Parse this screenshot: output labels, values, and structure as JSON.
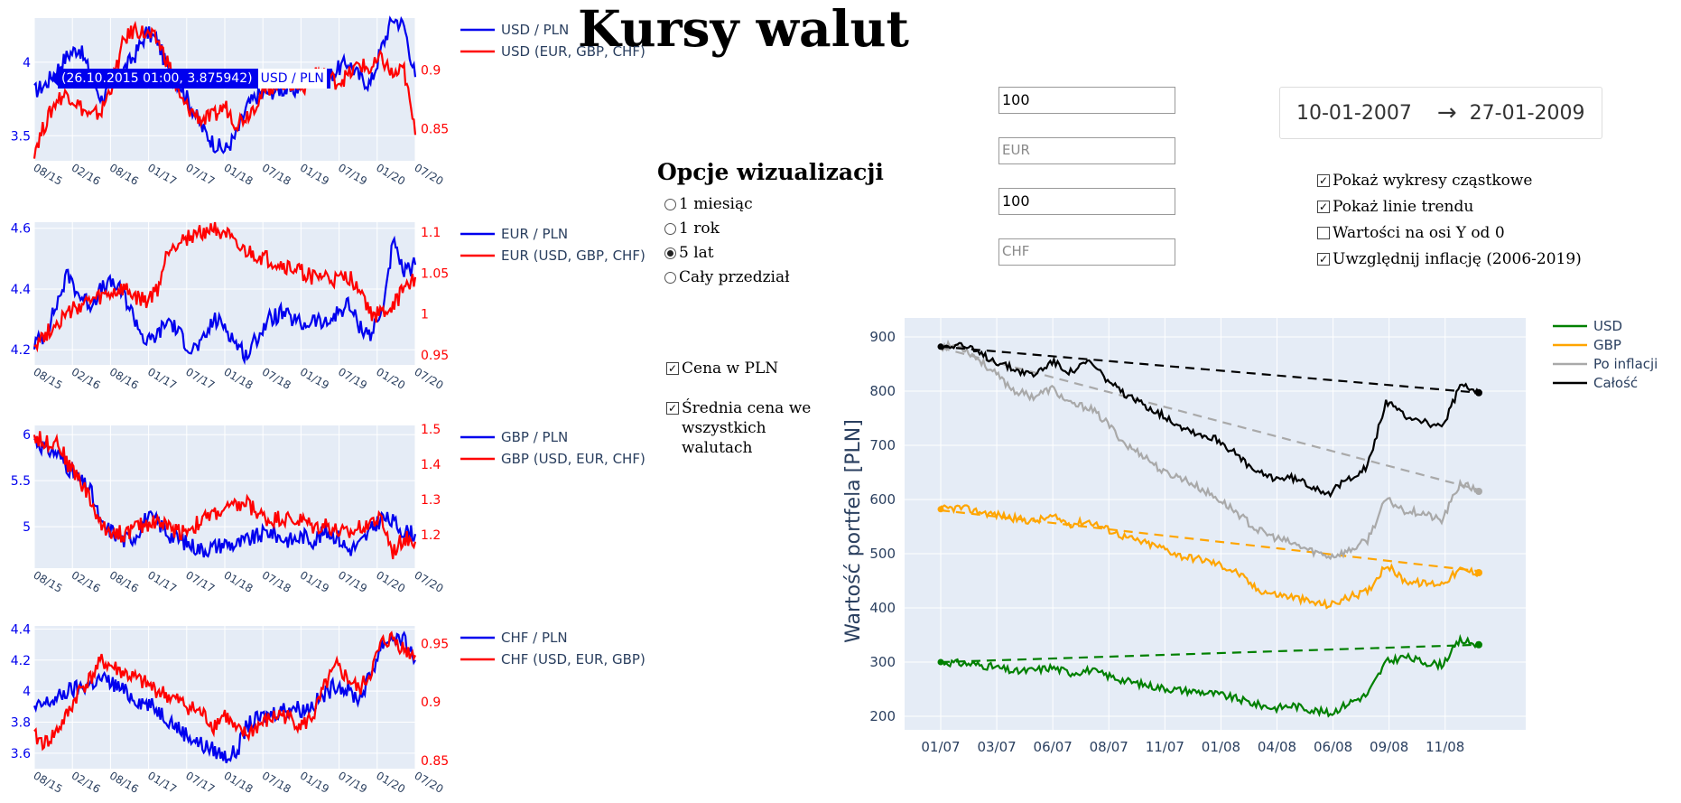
{
  "title": "Kursy walut",
  "options": {
    "title": "Opcje wizualizacji",
    "ranges": [
      {
        "label": "1 miesiąc",
        "selected": false
      },
      {
        "label": "1 rok",
        "selected": false
      },
      {
        "label": "5 lat",
        "selected": true
      },
      {
        "label": "Cały przedział",
        "selected": false
      }
    ],
    "price_pln": {
      "label": "Cena w PLN",
      "checked": true
    },
    "avg_price": {
      "label": "Średnia cena we wszystkich walutach",
      "checked": true
    }
  },
  "inputs": [
    {
      "value": "100",
      "placeholder": ""
    },
    {
      "value": "",
      "placeholder": "EUR"
    },
    {
      "value": "100",
      "placeholder": ""
    },
    {
      "value": "",
      "placeholder": "CHF"
    }
  ],
  "date_range": {
    "start": "10-01-2007",
    "arrow": "→",
    "end": "27-01-2009"
  },
  "settings": [
    {
      "label": "Pokaż wykresy cząstkowe",
      "checked": true
    },
    {
      "label": "Pokaż linie trendu",
      "checked": true
    },
    {
      "label": "Wartości na osi Y od 0",
      "checked": false
    },
    {
      "label": "Uwzględnij inflację (2006-2019)",
      "checked": true
    }
  ],
  "colors": {
    "blue": "#0000ee",
    "red": "#ff0000",
    "grid_bg": "#e5ecf6",
    "green": "#008000",
    "orange": "#ffa500",
    "gray": "#a9a9a9",
    "black": "#000000",
    "axis_text": "#2a3f5f"
  },
  "hover_tooltip": {
    "text": "(26.10.2015 01:00, 3.875942)",
    "trace": "USD / PLN"
  },
  "chart_data": [
    {
      "type": "line",
      "x_ticks": [
        "08/15",
        "02/16",
        "08/16",
        "01/17",
        "07/17",
        "01/18",
        "07/18",
        "01/19",
        "07/19",
        "01/20",
        "07/20"
      ],
      "y_ticks_left": [
        "3.5",
        "4"
      ],
      "y_ticks_right": [
        "0.85",
        "0.9"
      ],
      "ylim_left": [
        3.33,
        4.3
      ],
      "ylim_right": [
        0.823,
        0.944
      ],
      "series": [
        {
          "name": "USD / PLN",
          "axis": "left",
          "color": "#0000ee",
          "values": [
            3.8,
            3.85,
            3.95,
            4.05,
            4.1,
            3.92,
            3.75,
            3.85,
            3.95,
            4.05,
            4.2,
            4.15,
            3.92,
            3.85,
            3.7,
            3.55,
            3.45,
            3.4,
            3.5,
            3.7,
            3.78,
            3.8,
            3.82,
            3.8,
            3.85,
            3.9,
            3.88,
            3.95,
            4.0,
            3.9,
            3.85,
            4.1,
            4.3,
            4.25,
            3.9
          ]
        },
        {
          "name": "USD (EUR, GBP, CHF)",
          "axis": "right",
          "color": "#ff0000",
          "values": [
            0.832,
            0.855,
            0.875,
            0.88,
            0.87,
            0.86,
            0.865,
            0.89,
            0.925,
            0.935,
            0.93,
            0.925,
            0.905,
            0.875,
            0.865,
            0.858,
            0.86,
            0.87,
            0.855,
            0.862,
            0.875,
            0.885,
            0.89,
            0.888,
            0.885,
            0.9,
            0.895,
            0.89,
            0.895,
            0.905,
            0.9,
            0.91,
            0.895,
            0.9,
            0.845
          ]
        }
      ]
    },
    {
      "type": "line",
      "x_ticks": [
        "08/15",
        "02/16",
        "08/16",
        "01/17",
        "07/17",
        "01/18",
        "07/18",
        "01/19",
        "07/19",
        "01/20",
        "07/20"
      ],
      "y_ticks_left": [
        "4.2",
        "4.4",
        "4.6"
      ],
      "y_ticks_right": [
        "0.95",
        "1",
        "1.05",
        "1.1"
      ],
      "ylim_left": [
        4.15,
        4.62
      ],
      "ylim_right": [
        0.938,
        1.112
      ],
      "series": [
        {
          "name": "EUR / PLN",
          "axis": "left",
          "color": "#0000ee",
          "values": [
            4.22,
            4.25,
            4.35,
            4.45,
            4.38,
            4.35,
            4.4,
            4.42,
            4.38,
            4.3,
            4.22,
            4.25,
            4.3,
            4.25,
            4.2,
            4.22,
            4.3,
            4.28,
            4.22,
            4.18,
            4.25,
            4.3,
            4.32,
            4.3,
            4.28,
            4.3,
            4.28,
            4.32,
            4.35,
            4.28,
            4.25,
            4.32,
            4.55,
            4.45,
            4.48
          ]
        },
        {
          "name": "EUR (USD, GBP, CHF)",
          "axis": "right",
          "color": "#ff0000",
          "values": [
            0.965,
            0.975,
            0.99,
            1.0,
            1.01,
            1.015,
            1.02,
            1.025,
            1.03,
            1.02,
            1.015,
            1.03,
            1.08,
            1.09,
            1.095,
            1.1,
            1.105,
            1.1,
            1.08,
            1.075,
            1.07,
            1.065,
            1.06,
            1.055,
            1.05,
            1.045,
            1.045,
            1.04,
            1.045,
            1.035,
            1.0,
            1.0,
            1.01,
            1.03,
            1.045
          ]
        }
      ]
    },
    {
      "type": "line",
      "x_ticks": [
        "08/15",
        "02/16",
        "08/16",
        "01/17",
        "07/17",
        "01/18",
        "07/18",
        "01/19",
        "07/19",
        "01/20",
        "07/20"
      ],
      "y_ticks_left": [
        "5",
        "5.5",
        "6"
      ],
      "y_ticks_right": [
        "1.2",
        "1.3",
        "1.4",
        "1.5"
      ],
      "ylim_left": [
        4.55,
        6.1
      ],
      "ylim_right": [
        1.105,
        1.51
      ],
      "series": [
        {
          "name": "GBP / PLN",
          "axis": "left",
          "color": "#0000ee",
          "values": [
            5.95,
            5.85,
            5.8,
            5.65,
            5.5,
            5.4,
            5.0,
            4.95,
            4.85,
            4.9,
            5.1,
            5.05,
            4.92,
            4.85,
            4.8,
            4.75,
            4.78,
            4.82,
            4.8,
            4.85,
            4.9,
            4.95,
            4.88,
            4.85,
            4.9,
            4.85,
            4.95,
            4.9,
            4.75,
            4.8,
            4.95,
            5.1,
            5.05,
            4.95,
            4.92
          ]
        },
        {
          "name": "GBP (USD, EUR, CHF)",
          "axis": "right",
          "color": "#ff0000",
          "values": [
            1.48,
            1.46,
            1.47,
            1.4,
            1.36,
            1.3,
            1.22,
            1.21,
            1.2,
            1.22,
            1.23,
            1.24,
            1.22,
            1.21,
            1.22,
            1.24,
            1.26,
            1.27,
            1.28,
            1.29,
            1.26,
            1.24,
            1.25,
            1.24,
            1.24,
            1.22,
            1.23,
            1.21,
            1.2,
            1.22,
            1.24,
            1.24,
            1.15,
            1.19,
            1.18
          ]
        }
      ]
    },
    {
      "type": "line",
      "x_ticks": [
        "08/15",
        "02/16",
        "08/16",
        "01/17",
        "07/17",
        "01/18",
        "07/18",
        "01/19",
        "07/19",
        "01/20",
        "07/20"
      ],
      "y_ticks_left": [
        "3.6",
        "3.8",
        "4",
        "4.2",
        "4.4"
      ],
      "y_ticks_right": [
        "0.85",
        "0.9",
        "0.95"
      ],
      "ylim_left": [
        3.5,
        4.42
      ],
      "ylim_right": [
        0.843,
        0.965
      ],
      "series": [
        {
          "name": "CHF / PLN",
          "axis": "left",
          "color": "#0000ee",
          "values": [
            3.88,
            3.92,
            3.95,
            4.0,
            4.02,
            4.05,
            4.08,
            4.05,
            4.0,
            3.95,
            3.92,
            3.88,
            3.82,
            3.75,
            3.7,
            3.65,
            3.62,
            3.58,
            3.6,
            3.78,
            3.82,
            3.85,
            3.88,
            3.9,
            3.88,
            3.92,
            3.98,
            4.05,
            4.0,
            3.95,
            4.1,
            4.3,
            4.35,
            4.32,
            4.2
          ]
        },
        {
          "name": "CHF (USD, EUR, GBP)",
          "axis": "right",
          "color": "#ff0000",
          "values": [
            0.87,
            0.865,
            0.875,
            0.89,
            0.91,
            0.92,
            0.935,
            0.93,
            0.925,
            0.92,
            0.915,
            0.91,
            0.905,
            0.9,
            0.895,
            0.89,
            0.88,
            0.89,
            0.875,
            0.872,
            0.88,
            0.885,
            0.89,
            0.885,
            0.88,
            0.89,
            0.915,
            0.93,
            0.92,
            0.91,
            0.925,
            0.95,
            0.955,
            0.945,
            0.94
          ]
        }
      ]
    },
    {
      "type": "line",
      "x_ticks": [
        "01/07",
        "03/07",
        "06/07",
        "08/07",
        "11/07",
        "01/08",
        "04/08",
        "06/08",
        "09/08",
        "11/08"
      ],
      "y_ticks": [
        "200",
        "300",
        "400",
        "500",
        "600",
        "700",
        "800",
        "900"
      ],
      "ylabel": "Wartość portfela [PLN]",
      "ylim": [
        175,
        935
      ],
      "legend": "top-right",
      "series": [
        {
          "name": "USD",
          "color": "#008000",
          "values": [
            300,
            298,
            295,
            290,
            282,
            285,
            290,
            280,
            285,
            275,
            265,
            258,
            252,
            248,
            245,
            240,
            232,
            222,
            215,
            220,
            212,
            205,
            225,
            240,
            300,
            310,
            300,
            295,
            340,
            332
          ],
          "trend": [
            300,
            332
          ]
        },
        {
          "name": "GBP",
          "color": "#ffa500",
          "values": [
            582,
            585,
            578,
            572,
            565,
            560,
            568,
            555,
            560,
            545,
            530,
            520,
            510,
            495,
            490,
            480,
            465,
            435,
            425,
            420,
            410,
            405,
            420,
            430,
            480,
            450,
            445,
            445,
            470,
            465
          ],
          "trend": [
            580,
            468
          ]
        },
        {
          "name": "Po inflacji",
          "color": "#a9a9a9",
          "values": [
            882,
            885,
            860,
            830,
            800,
            790,
            805,
            775,
            770,
            740,
            700,
            680,
            650,
            640,
            620,
            600,
            575,
            545,
            530,
            518,
            505,
            495,
            505,
            525,
            600,
            580,
            575,
            560,
            630,
            615
          ],
          "trend": [
            880,
            618
          ]
        },
        {
          "name": "Całość",
          "color": "#000000",
          "values": [
            882,
            888,
            870,
            855,
            840,
            830,
            855,
            835,
            855,
            820,
            790,
            775,
            755,
            735,
            720,
            710,
            680,
            650,
            640,
            640,
            625,
            612,
            640,
            660,
            780,
            755,
            745,
            730,
            810,
            797
          ],
          "trend": [
            882,
            797
          ]
        }
      ]
    }
  ]
}
